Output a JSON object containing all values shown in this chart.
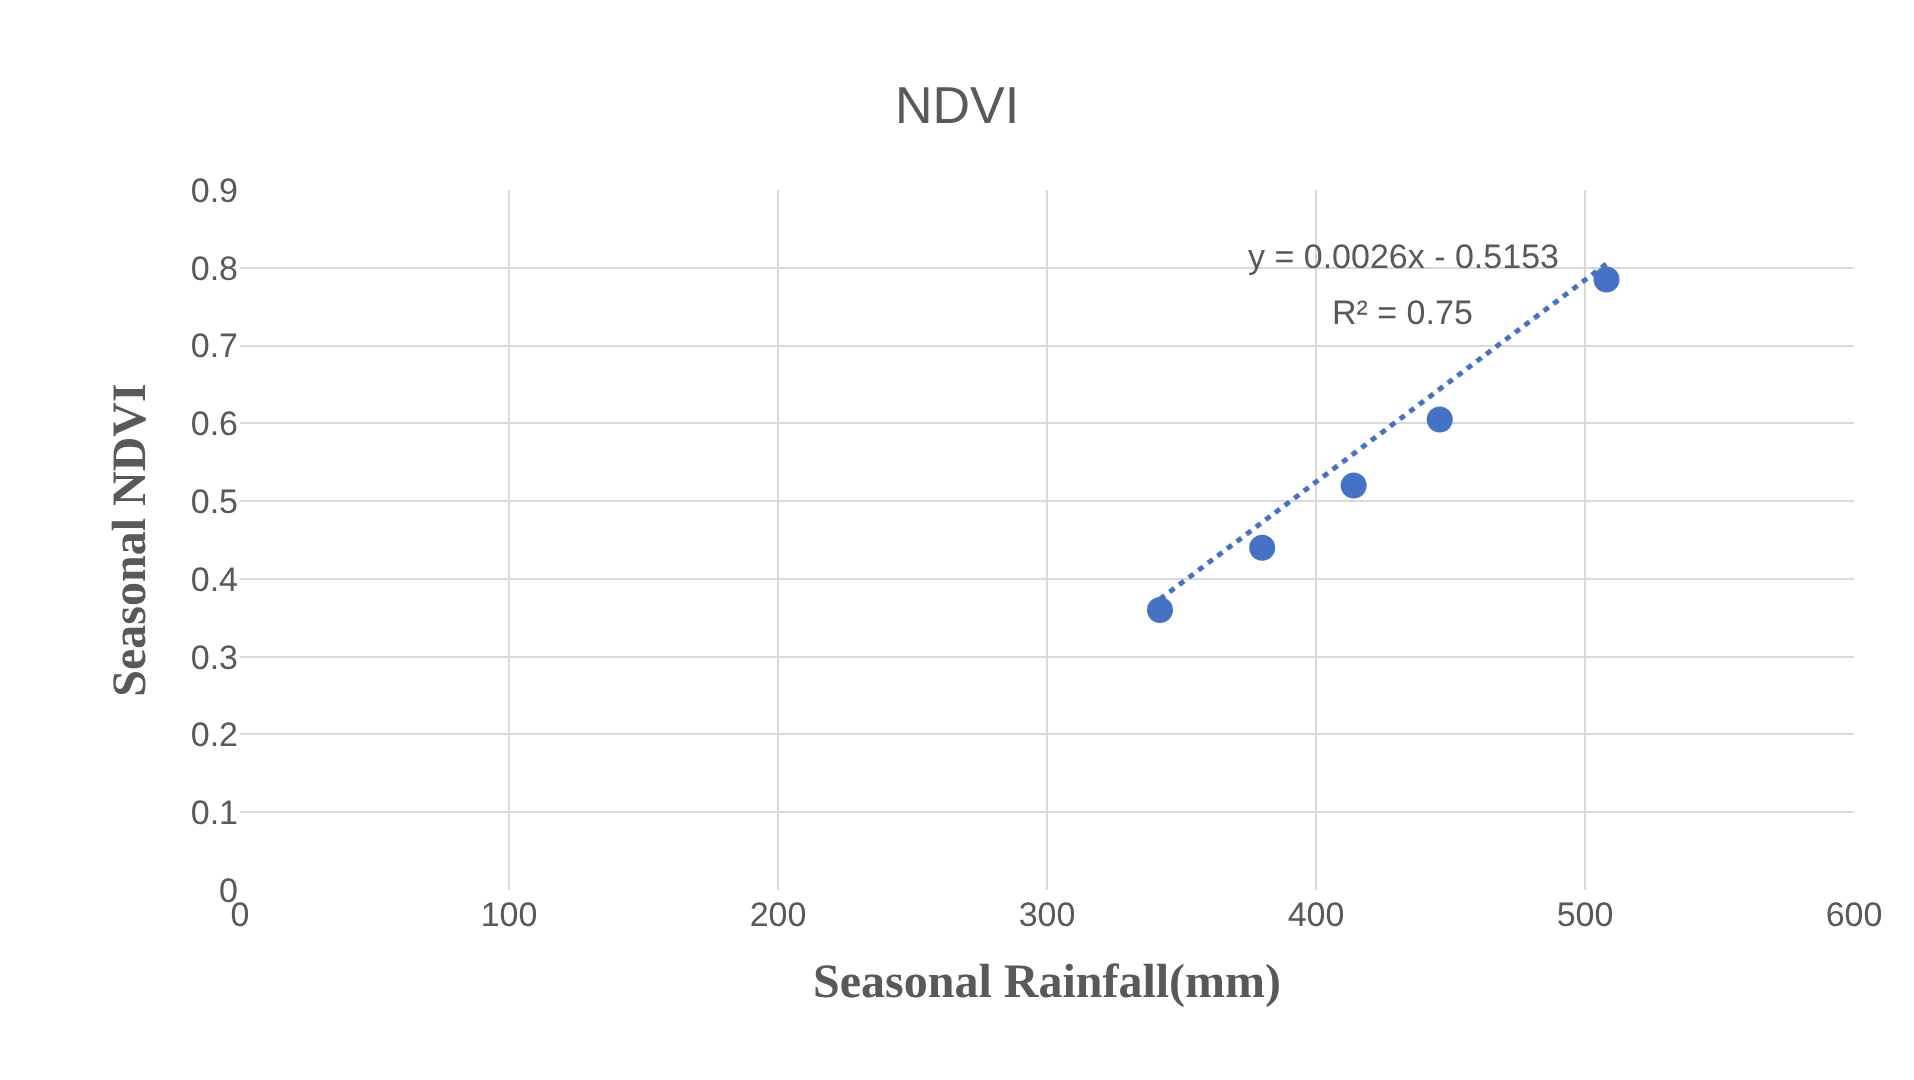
{
  "chart_data": {
    "type": "scatter",
    "title": "NDVI",
    "xlabel": "Seasonal Rainfall(mm)",
    "ylabel": "Seasonal NDVI",
    "series": [
      {
        "color": "#4472c4",
        "x": [
          342,
          380,
          414,
          446,
          508
        ],
        "values": [
          0.36,
          0.44,
          0.52,
          0.605,
          0.785
        ],
        "marker": "circle"
      },
      {
        "type": "line",
        "color": "#4472c4",
        "x": [
          342,
          508
        ],
        "values": [
          0.374,
          0.805
        ],
        "line_style": "dotted",
        "marker": "none"
      }
    ],
    "annotations": [
      "y = 0.0026x - 0.5153",
      "R² = 0.75"
    ],
    "xlim": [
      0,
      600
    ],
    "xticks": [
      0,
      100,
      200,
      300,
      400,
      500,
      600
    ],
    "ylim": [
      0,
      0.9
    ],
    "yticks": [
      0,
      0.1,
      0.2,
      0.3,
      0.4,
      0.5,
      0.6,
      0.7,
      0.8,
      0.9
    ],
    "grid": true
  }
}
